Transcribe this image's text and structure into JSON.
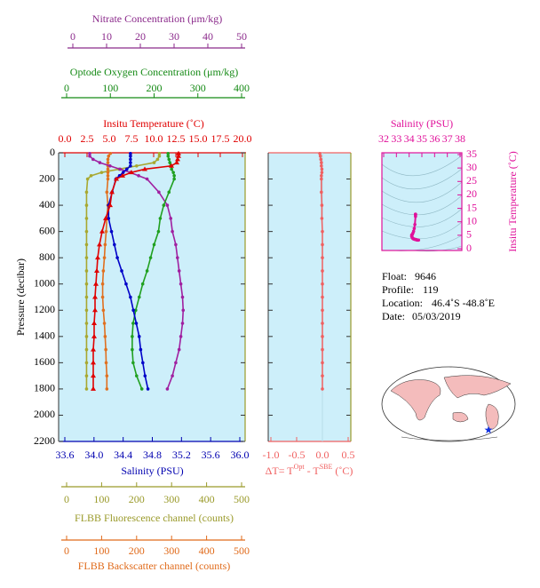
{
  "chart_data": {
    "type": "profile",
    "y_label": "Pressure (decibar)",
    "ylim": [
      0,
      2200
    ],
    "yticks": [
      0,
      200,
      400,
      600,
      800,
      1000,
      1200,
      1400,
      1600,
      1800,
      2000,
      2200
    ],
    "pressure": [
      5,
      25,
      50,
      75,
      100,
      125,
      150,
      175,
      200,
      300,
      400,
      500,
      600,
      700,
      800,
      900,
      1000,
      1100,
      1200,
      1300,
      1400,
      1500,
      1600,
      1700,
      1800
    ],
    "axes": {
      "nitrate": {
        "label": "Nitrate Concentration (μm/kg)",
        "color": "#8b2a8b",
        "xlim": [
          0,
          50
        ],
        "xticks": [
          0,
          10,
          20,
          30,
          40,
          50
        ]
      },
      "oxygen": {
        "label": "Optode Oxygen Concentration (μm/kg)",
        "color": "#158a15",
        "xlim": [
          0,
          400
        ],
        "xticks": [
          0,
          100,
          200,
          300,
          400
        ]
      },
      "temperature": {
        "label": "Insitu Temperature (˚C)",
        "color": "#e00000",
        "xlim": [
          0,
          20
        ],
        "xticks": [
          {
            "value": 0,
            "label": "0.0"
          },
          2.5,
          {
            "value": 5,
            "label": "5.0"
          },
          7.5,
          {
            "value": 10,
            "label": "10.0"
          },
          12.5,
          {
            "value": 15,
            "label": "15.0"
          },
          17.5,
          {
            "value": 20,
            "label": "20.0"
          }
        ]
      },
      "salinity": {
        "label": "Salinity (PSU)",
        "color": "#0000b0",
        "xlim": [
          33.6,
          36.0
        ],
        "xticks": [
          33.6,
          {
            "value": 34,
            "label": "34.0"
          },
          34.4,
          34.8,
          35.2,
          35.6,
          {
            "value": 36,
            "label": "36.0"
          }
        ]
      },
      "fluorescence": {
        "label": "FLBB Fluorescence channel (counts)",
        "color": "#9a9a2a",
        "xlim": [
          0,
          500
        ],
        "xticks": [
          0,
          100,
          200,
          300,
          400,
          500
        ]
      },
      "backscatter": {
        "label": "FLBB Backscatter channel (counts)",
        "color": "#e06a1a",
        "xlim": [
          0,
          500
        ],
        "xticks": [
          0,
          100,
          200,
          300,
          400,
          500
        ]
      }
    },
    "series": [
      {
        "name": "Salinity",
        "axis": "salinity",
        "color": "#0000c8",
        "values": [
          34.5,
          34.5,
          34.5,
          34.5,
          34.5,
          34.45,
          34.4,
          34.35,
          34.3,
          34.25,
          34.2,
          34.2,
          34.24,
          34.28,
          34.32,
          34.38,
          34.44,
          34.5,
          34.54,
          34.58,
          34.62,
          34.64,
          34.67,
          34.7,
          34.74
        ]
      },
      {
        "name": "Temperature",
        "axis": "temperature",
        "color": "#e00000",
        "values": [
          12.8,
          12.8,
          12.7,
          12.6,
          12.0,
          9.0,
          7.5,
          6.5,
          5.8,
          5.3,
          5.1,
          4.6,
          4.2,
          3.9,
          3.7,
          3.6,
          3.5,
          3.4,
          3.4,
          3.3,
          3.3,
          3.2,
          3.2,
          3.2,
          3.2
        ]
      },
      {
        "name": "Oxygen",
        "axis": "oxygen",
        "color": "#20a020",
        "values": [
          232,
          232,
          234,
          236,
          238,
          240,
          244,
          246,
          246,
          234,
          222,
          214,
          210,
          200,
          192,
          184,
          174,
          166,
          158,
          152,
          150,
          150,
          152,
          160,
          172
        ]
      },
      {
        "name": "Nitrate",
        "axis": "nitrate",
        "color": "#a020a0",
        "values": [
          5,
          5,
          6,
          8,
          11,
          14,
          17,
          19.5,
          22,
          25.5,
          28,
          29,
          29.5,
          30.5,
          31,
          31.5,
          32,
          32.5,
          32.7,
          32.5,
          32,
          31.5,
          30.5,
          29.5,
          28
        ]
      },
      {
        "name": "Fluorescence",
        "axis": "fluorescence",
        "color": "#a8a830",
        "values": [
          265,
          265,
          260,
          250,
          200,
          150,
          100,
          70,
          60,
          57,
          57,
          57,
          57,
          57,
          57,
          57,
          57,
          57,
          57,
          57,
          57,
          57,
          57,
          57,
          57
        ]
      },
      {
        "name": "Backscatter",
        "axis": "backscatter",
        "color": "#e07020",
        "values": [
          125,
          120,
          118,
          118,
          118,
          118,
          118,
          118,
          118,
          115,
          118,
          115,
          113,
          110,
          108,
          105,
          103,
          103,
          105,
          108,
          110,
          112,
          113,
          115,
          115
        ]
      }
    ],
    "delta_t": {
      "label": [
        "ΔT= T",
        "Opt",
        " - T",
        "SBE",
        " (˚C)"
      ],
      "color": "#f06060",
      "xlim": [
        -1.0,
        0.5
      ],
      "xticks": [
        {
          "value": -1,
          "label": "-1.0"
        },
        -0.5,
        {
          "value": 0,
          "label": "0.0"
        },
        0.5
      ],
      "values": [
        -0.05,
        -0.04,
        -0.03,
        -0.02,
        -0.02,
        -0.01,
        -0.01,
        -0.02,
        -0.02,
        -0.02,
        -0.01,
        -0.01,
        0,
        0,
        0,
        0,
        0,
        0,
        0,
        0,
        0,
        0,
        0,
        0,
        0
      ]
    },
    "ts_panel": {
      "x_label": "Salinity (PSU)",
      "y_label": "Insitu Temperature (˚C)",
      "color": "#e0109a",
      "xlim": [
        32,
        38
      ],
      "xticks": [
        32,
        33,
        34,
        35,
        36,
        37,
        38
      ],
      "ylim": [
        0,
        35
      ],
      "yticks": [
        0,
        5,
        10,
        15,
        20,
        25,
        30,
        35
      ]
    },
    "info": [
      {
        "label": "Float:",
        "value": "9646"
      },
      {
        "label": "Profile:",
        "value": "119"
      },
      {
        "label": "Location:",
        "value": "46.4˚S  -48.8˚E"
      },
      {
        "label": "Date:",
        "value": "05/03/2019"
      }
    ]
  }
}
